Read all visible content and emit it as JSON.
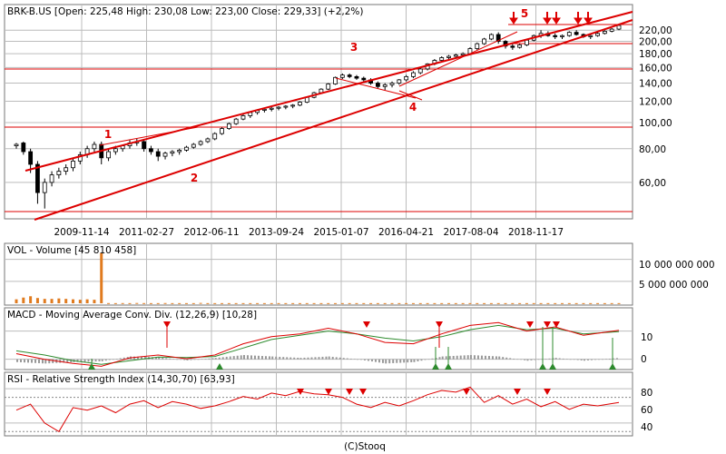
{
  "price_panel": {
    "header": "BRK-B.US [Open: 225,48  High: 230,08  Low: 223,00  Close: 229,33] (+2,2%)"
  },
  "volume_panel": {
    "header": "VOL - Volume [45 810 458]"
  },
  "macd_panel": {
    "header": "MACD - Moving Average Conv. Div. (12,26,9) [10,28]"
  },
  "rsi_panel": {
    "header": "RSI - Relative Strength Index (14,30,70) [63,93]"
  },
  "footer": {
    "credit": "(C)Stooq"
  },
  "colors": {
    "grid": "#bcbcbc",
    "frame": "#777777",
    "annotation": "#dd0000",
    "volume_bar": "#e07b1f",
    "macd_line": "#dd0000",
    "signal_line": "#2e8b2e",
    "histogram": "#999999",
    "buy_marker": "#2e8b2e",
    "sell_marker": "#dd0000",
    "rsi_line": "#dd0000"
  },
  "chart_data": [
    {
      "type": "candlestick",
      "ticker": "BRK-B.US",
      "scale": "log",
      "ylim": [
        45,
        240
      ],
      "x_ticks": [
        "2009-11-14",
        "2011-02-27",
        "2012-06-11",
        "2013-09-24",
        "2015-01-07",
        "2016-04-21",
        "2017-08-04",
        "2018-11-17"
      ],
      "y_ticks": [
        "220,00",
        "200,00",
        "180,00",
        "160,00",
        "140,00",
        "120,00",
        "100,00",
        "80,00",
        "60,00"
      ],
      "last_bar": {
        "open": 225.48,
        "high": 230.08,
        "low": 223.0,
        "close": 229.33,
        "change": "+2,2%"
      },
      "candles": [
        [
          82,
          84,
          80,
          83
        ],
        [
          84,
          85,
          76,
          78
        ],
        [
          78,
          80,
          65,
          70
        ],
        [
          70,
          72,
          50,
          55
        ],
        [
          55,
          62,
          48,
          60
        ],
        [
          60,
          66,
          58,
          64
        ],
        [
          64,
          68,
          62,
          66
        ],
        [
          66,
          70,
          64,
          68
        ],
        [
          68,
          74,
          66,
          72
        ],
        [
          72,
          78,
          70,
          76
        ],
        [
          76,
          82,
          74,
          80
        ],
        [
          80,
          85,
          78,
          83
        ],
        [
          83,
          85,
          70,
          74
        ],
        [
          74,
          80,
          72,
          78
        ],
        [
          78,
          82,
          76,
          80
        ],
        [
          80,
          83,
          78,
          82
        ],
        [
          82,
          86,
          80,
          84
        ],
        [
          84,
          87,
          82,
          85
        ],
        [
          85,
          86,
          78,
          80
        ],
        [
          80,
          82,
          76,
          78
        ],
        [
          78,
          80,
          72,
          75
        ],
        [
          75,
          78,
          73,
          77
        ],
        [
          77,
          79,
          75,
          78
        ],
        [
          78,
          80,
          76,
          79
        ],
        [
          79,
          82,
          78,
          81
        ],
        [
          81,
          84,
          80,
          83
        ],
        [
          83,
          86,
          82,
          85
        ],
        [
          85,
          88,
          84,
          87
        ],
        [
          87,
          92,
          86,
          91
        ],
        [
          91,
          96,
          90,
          95
        ],
        [
          95,
          100,
          94,
          99
        ],
        [
          99,
          104,
          98,
          103
        ],
        [
          103,
          108,
          102,
          106
        ],
        [
          106,
          110,
          104,
          109
        ],
        [
          109,
          112,
          107,
          111
        ],
        [
          111,
          113,
          109,
          112
        ],
        [
          112,
          114,
          110,
          113
        ],
        [
          113,
          115,
          111,
          114
        ],
        [
          114,
          116,
          112,
          115
        ],
        [
          115,
          117,
          113,
          116
        ],
        [
          116,
          120,
          115,
          119
        ],
        [
          119,
          125,
          118,
          124
        ],
        [
          124,
          130,
          123,
          129
        ],
        [
          129,
          134,
          128,
          133
        ],
        [
          133,
          140,
          132,
          139
        ],
        [
          139,
          148,
          138,
          147
        ],
        [
          147,
          152,
          145,
          150
        ],
        [
          150,
          152,
          146,
          148
        ],
        [
          148,
          150,
          144,
          146
        ],
        [
          146,
          148,
          142,
          144
        ],
        [
          144,
          146,
          138,
          140
        ],
        [
          140,
          142,
          134,
          136
        ],
        [
          136,
          140,
          132,
          138
        ],
        [
          138,
          142,
          135,
          140
        ],
        [
          140,
          145,
          138,
          144
        ],
        [
          144,
          150,
          142,
          148
        ],
        [
          148,
          155,
          146,
          153
        ],
        [
          153,
          160,
          151,
          158
        ],
        [
          158,
          166,
          156,
          165
        ],
        [
          165,
          172,
          163,
          170
        ],
        [
          170,
          176,
          168,
          174
        ],
        [
          174,
          178,
          172,
          176
        ],
        [
          176,
          180,
          174,
          178
        ],
        [
          178,
          182,
          176,
          180
        ],
        [
          180,
          190,
          178,
          188
        ],
        [
          188,
          198,
          186,
          196
        ],
        [
          196,
          206,
          194,
          204
        ],
        [
          204,
          214,
          202,
          212
        ],
        [
          212,
          216,
          196,
          200
        ],
        [
          200,
          202,
          188,
          192
        ],
        [
          192,
          196,
          186,
          190
        ],
        [
          190,
          196,
          188,
          194
        ],
        [
          194,
          204,
          192,
          202
        ],
        [
          202,
          212,
          200,
          210
        ],
        [
          210,
          220,
          206,
          214
        ],
        [
          214,
          218,
          208,
          210
        ],
        [
          210,
          214,
          204,
          208
        ],
        [
          208,
          212,
          204,
          210
        ],
        [
          210,
          218,
          208,
          216
        ],
        [
          216,
          220,
          210,
          212
        ],
        [
          212,
          214,
          206,
          208
        ],
        [
          208,
          212,
          204,
          210
        ],
        [
          210,
          216,
          208,
          214
        ],
        [
          214,
          220,
          212,
          218
        ],
        [
          218,
          224,
          216,
          222
        ],
        [
          222,
          230,
          220,
          229
        ]
      ],
      "annotations": [
        "1",
        "2",
        "3",
        "4",
        "5"
      ]
    },
    {
      "type": "bar",
      "title": "VOL - Volume",
      "y_ticks": [
        "10 000 000 000",
        "5 000 000 000"
      ],
      "ylim": [
        0,
        12000000000
      ],
      "values": [
        900000000.0,
        1300000000.0,
        1600000000.0,
        1200000000.0,
        1000000000.0,
        1000000000.0,
        1100000000.0,
        1000000000.0,
        900000000.0,
        800000000.0,
        900000000.0,
        800000000.0,
        11500000000.0,
        40000000.0,
        30000000.0,
        40000000.0,
        30000000.0,
        60000000.0,
        40000000.0,
        30000000.0,
        30000000.0,
        50000000.0,
        30000000.0,
        30000000.0,
        30000000.0,
        30000000.0,
        80000000.0,
        30000000.0,
        30000000.0,
        30000000.0,
        30000000.0,
        30000000.0,
        30000000.0,
        30000000.0,
        30000000.0,
        30000000.0,
        30000000.0,
        30000000.0,
        30000000.0,
        30000000.0,
        30000000.0,
        30000000.0,
        30000000.0,
        30000000.0,
        30000000.0,
        30000000.0,
        30000000.0,
        30000000.0,
        30000000.0,
        30000000.0,
        30000000.0,
        30000000.0,
        30000000.0,
        30000000.0,
        30000000.0,
        30000000.0,
        30000000.0,
        30000000.0,
        30000000.0,
        30000000.0,
        30000000.0,
        30000000.0,
        30000000.0,
        30000000.0,
        30000000.0,
        30000000.0,
        30000000.0,
        30000000.0,
        30000000.0,
        30000000.0,
        30000000.0,
        30000000.0,
        30000000.0,
        30000000.0,
        30000000.0,
        30000000.0,
        30000000.0,
        30000000.0,
        30000000.0,
        30000000.0,
        30000000.0,
        30000000.0,
        30000000.0,
        30000000.0,
        30000000.0,
        30000000.0
      ]
    },
    {
      "type": "line",
      "title": "MACD - Moving Average Conv. Div.",
      "y_ticks": [
        "10",
        "0"
      ],
      "ylim": [
        -3,
        16
      ],
      "series": [
        {
          "name": "MACD",
          "x": [
            0,
            4,
            8,
            12,
            16,
            20,
            24,
            28,
            32,
            36,
            40,
            44,
            48,
            52,
            56,
            60,
            64,
            68,
            72,
            76,
            80,
            85
          ],
          "values": [
            2,
            0,
            -1.5,
            -2.5,
            0.5,
            1.5,
            0.2,
            1.5,
            5.5,
            8,
            9,
            11,
            9,
            6,
            5.5,
            9,
            12,
            13,
            10,
            11.5,
            8.5,
            10.3
          ]
        },
        {
          "name": "Signal",
          "x": [
            0,
            4,
            8,
            12,
            16,
            20,
            24,
            28,
            32,
            36,
            40,
            44,
            48,
            52,
            56,
            60,
            64,
            68,
            72,
            76,
            80,
            85
          ],
          "values": [
            3,
            1.5,
            -0.5,
            -1.8,
            -0.5,
            0.8,
            0.6,
            1,
            4,
            7,
            8.5,
            10,
            9,
            7.5,
            6.5,
            8,
            10.5,
            12,
            10.5,
            11,
            9,
            9.8
          ]
        },
        {
          "name": "Histogram",
          "x": [
            0,
            4,
            8,
            12,
            16,
            20,
            24,
            28,
            32,
            36,
            40,
            44,
            48,
            52,
            56,
            60,
            64,
            68,
            72,
            76,
            80,
            85
          ],
          "values": [
            -1,
            -1.5,
            -1,
            -0.7,
            1,
            0.7,
            -0.4,
            0.5,
            1.5,
            1,
            0.5,
            1,
            0,
            -1.5,
            -1,
            1,
            1.5,
            1,
            -0.5,
            0.5,
            -0.5,
            0.5
          ]
        }
      ]
    },
    {
      "type": "line",
      "title": "RSI - Relative Strength Index",
      "y_ticks": [
        "80",
        "60",
        "40"
      ],
      "ylim": [
        25,
        95
      ],
      "series": [
        {
          "name": "RSI",
          "x": [
            0,
            2,
            4,
            6,
            8,
            10,
            12,
            14,
            16,
            18,
            20,
            22,
            24,
            26,
            28,
            30,
            32,
            34,
            36,
            38,
            40,
            42,
            44,
            46,
            48,
            50,
            52,
            54,
            56,
            58,
            60,
            62,
            64,
            66,
            68,
            70,
            72,
            74,
            76,
            78,
            80,
            82,
            85
          ],
          "values": [
            55,
            62,
            40,
            30,
            58,
            55,
            60,
            52,
            62,
            66,
            58,
            65,
            62,
            57,
            60,
            65,
            71,
            68,
            75,
            72,
            77,
            74,
            73,
            70,
            62,
            58,
            64,
            60,
            66,
            73,
            78,
            76,
            82,
            64,
            72,
            62,
            68,
            59,
            65,
            56,
            62,
            60,
            64
          ]
        }
      ]
    }
  ]
}
